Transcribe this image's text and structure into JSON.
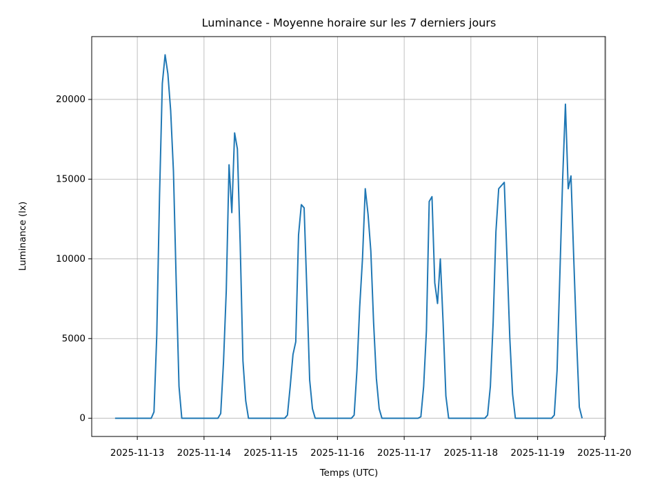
{
  "chart_data": {
    "type": "line",
    "title": "Luminance - Moyenne horaire sur les 7 derniers jours",
    "xlabel": "Temps (UTC)",
    "ylabel": "Luminance (lx)",
    "x": [
      "2025-11-12T16:00",
      "2025-11-12T17:00",
      "2025-11-12T18:00",
      "2025-11-12T19:00",
      "2025-11-12T20:00",
      "2025-11-12T21:00",
      "2025-11-12T22:00",
      "2025-11-12T23:00",
      "2025-11-13T00:00",
      "2025-11-13T01:00",
      "2025-11-13T02:00",
      "2025-11-13T03:00",
      "2025-11-13T04:00",
      "2025-11-13T05:00",
      "2025-11-13T06:00",
      "2025-11-13T07:00",
      "2025-11-13T08:00",
      "2025-11-13T09:00",
      "2025-11-13T10:00",
      "2025-11-13T11:00",
      "2025-11-13T12:00",
      "2025-11-13T13:00",
      "2025-11-13T14:00",
      "2025-11-13T15:00",
      "2025-11-13T16:00",
      "2025-11-13T17:00",
      "2025-11-13T18:00",
      "2025-11-13T19:00",
      "2025-11-13T20:00",
      "2025-11-13T21:00",
      "2025-11-13T22:00",
      "2025-11-13T23:00",
      "2025-11-14T00:00",
      "2025-11-14T01:00",
      "2025-11-14T02:00",
      "2025-11-14T03:00",
      "2025-11-14T04:00",
      "2025-11-14T05:00",
      "2025-11-14T06:00",
      "2025-11-14T07:00",
      "2025-11-14T08:00",
      "2025-11-14T09:00",
      "2025-11-14T10:00",
      "2025-11-14T11:00",
      "2025-11-14T12:00",
      "2025-11-14T13:00",
      "2025-11-14T14:00",
      "2025-11-14T15:00",
      "2025-11-14T16:00",
      "2025-11-14T17:00",
      "2025-11-14T18:00",
      "2025-11-14T19:00",
      "2025-11-14T20:00",
      "2025-11-14T21:00",
      "2025-11-14T22:00",
      "2025-11-14T23:00",
      "2025-11-15T00:00",
      "2025-11-15T01:00",
      "2025-11-15T02:00",
      "2025-11-15T03:00",
      "2025-11-15T04:00",
      "2025-11-15T05:00",
      "2025-11-15T06:00",
      "2025-11-15T07:00",
      "2025-11-15T08:00",
      "2025-11-15T09:00",
      "2025-11-15T10:00",
      "2025-11-15T11:00",
      "2025-11-15T12:00",
      "2025-11-15T13:00",
      "2025-11-15T14:00",
      "2025-11-15T15:00",
      "2025-11-15T16:00",
      "2025-11-15T17:00",
      "2025-11-15T18:00",
      "2025-11-15T19:00",
      "2025-11-15T20:00",
      "2025-11-15T21:00",
      "2025-11-15T22:00",
      "2025-11-15T23:00",
      "2025-11-16T00:00",
      "2025-11-16T01:00",
      "2025-11-16T02:00",
      "2025-11-16T03:00",
      "2025-11-16T04:00",
      "2025-11-16T05:00",
      "2025-11-16T06:00",
      "2025-11-16T07:00",
      "2025-11-16T08:00",
      "2025-11-16T09:00",
      "2025-11-16T10:00",
      "2025-11-16T11:00",
      "2025-11-16T12:00",
      "2025-11-16T13:00",
      "2025-11-16T14:00",
      "2025-11-16T15:00",
      "2025-11-16T16:00",
      "2025-11-16T17:00",
      "2025-11-16T18:00",
      "2025-11-16T19:00",
      "2025-11-16T20:00",
      "2025-11-16T21:00",
      "2025-11-16T22:00",
      "2025-11-16T23:00",
      "2025-11-17T00:00",
      "2025-11-17T01:00",
      "2025-11-17T02:00",
      "2025-11-17T03:00",
      "2025-11-17T04:00",
      "2025-11-17T05:00",
      "2025-11-17T06:00",
      "2025-11-17T07:00",
      "2025-11-17T08:00",
      "2025-11-17T09:00",
      "2025-11-17T10:00",
      "2025-11-17T11:00",
      "2025-11-17T12:00",
      "2025-11-17T13:00",
      "2025-11-17T14:00",
      "2025-11-17T15:00",
      "2025-11-17T16:00",
      "2025-11-17T17:00",
      "2025-11-17T18:00",
      "2025-11-17T19:00",
      "2025-11-17T20:00",
      "2025-11-17T21:00",
      "2025-11-17T22:00",
      "2025-11-17T23:00",
      "2025-11-18T00:00",
      "2025-11-18T01:00",
      "2025-11-18T02:00",
      "2025-11-18T03:00",
      "2025-11-18T04:00",
      "2025-11-18T05:00",
      "2025-11-18T06:00",
      "2025-11-18T07:00",
      "2025-11-18T08:00",
      "2025-11-18T09:00",
      "2025-11-18T10:00",
      "2025-11-18T11:00",
      "2025-11-18T12:00",
      "2025-11-18T13:00",
      "2025-11-18T14:00",
      "2025-11-18T15:00",
      "2025-11-18T16:00",
      "2025-11-18T17:00",
      "2025-11-18T18:00",
      "2025-11-18T19:00",
      "2025-11-18T20:00",
      "2025-11-18T21:00",
      "2025-11-18T22:00",
      "2025-11-18T23:00",
      "2025-11-19T00:00",
      "2025-11-19T01:00",
      "2025-11-19T02:00",
      "2025-11-19T03:00",
      "2025-11-19T04:00",
      "2025-11-19T05:00",
      "2025-11-19T06:00",
      "2025-11-19T07:00",
      "2025-11-19T08:00",
      "2025-11-19T09:00",
      "2025-11-19T10:00",
      "2025-11-19T11:00",
      "2025-11-19T12:00",
      "2025-11-19T13:00",
      "2025-11-19T14:00",
      "2025-11-19T15:00",
      "2025-11-19T16:00"
    ],
    "values": [
      0,
      0,
      0,
      0,
      0,
      0,
      0,
      0,
      0,
      0,
      0,
      0,
      0,
      0,
      400,
      5200,
      14000,
      21000,
      22800,
      21600,
      19300,
      15500,
      8500,
      2000,
      0,
      0,
      0,
      0,
      0,
      0,
      0,
      0,
      0,
      0,
      0,
      0,
      0,
      0,
      300,
      3500,
      8000,
      15900,
      12900,
      17900,
      16900,
      11000,
      3600,
      1100,
      0,
      0,
      0,
      0,
      0,
      0,
      0,
      0,
      0,
      0,
      0,
      0,
      0,
      0,
      200,
      2000,
      4000,
      4800,
      11500,
      13400,
      13200,
      8000,
      2400,
      600,
      0,
      0,
      0,
      0,
      0,
      0,
      0,
      0,
      0,
      0,
      0,
      0,
      0,
      0,
      200,
      3000,
      7000,
      10000,
      14400,
      12800,
      10500,
      6000,
      2500,
      600,
      0,
      0,
      0,
      0,
      0,
      0,
      0,
      0,
      0,
      0,
      0,
      0,
      0,
      0,
      100,
      2000,
      5500,
      13600,
      13900,
      8500,
      7200,
      10000,
      6000,
      1400,
      0,
      0,
      0,
      0,
      0,
      0,
      0,
      0,
      0,
      0,
      0,
      0,
      0,
      0,
      200,
      2000,
      6000,
      11700,
      14400,
      14600,
      14800,
      10000,
      5000,
      1500,
      0,
      0,
      0,
      0,
      0,
      0,
      0,
      0,
      0,
      0,
      0,
      0,
      0,
      0,
      200,
      3000,
      9000,
      15000,
      19700,
      14400,
      15200,
      10000,
      5000,
      700,
      0
    ],
    "color": "#1f77b4",
    "xlim": [
      "2025-11-12T07:36",
      "2025-11-20T00:24"
    ],
    "xticks": [
      "2025-11-13",
      "2025-11-14",
      "2025-11-15",
      "2025-11-16",
      "2025-11-17",
      "2025-11-18",
      "2025-11-19",
      "2025-11-20"
    ],
    "ylim": [
      -1140,
      23940
    ],
    "yticks": [
      0,
      5000,
      10000,
      15000,
      20000
    ],
    "grid": true
  }
}
